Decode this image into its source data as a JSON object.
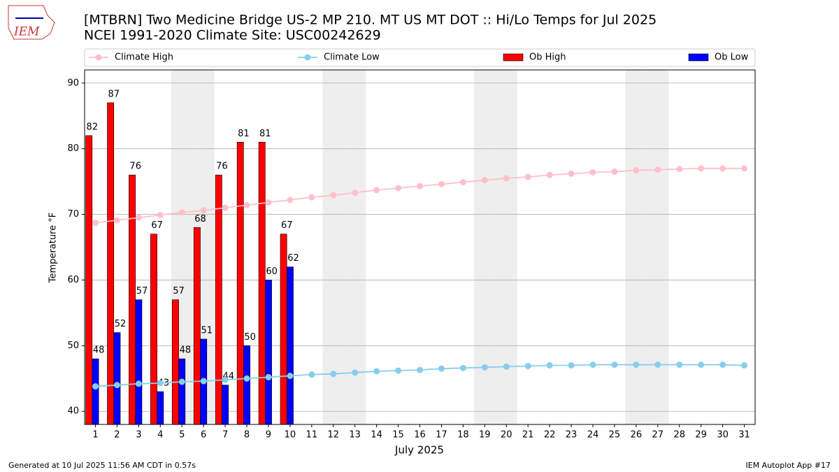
{
  "header": {
    "logo": "IEM"
  },
  "chart_data": {
    "type": "bar_line",
    "title": "[MTBRN] Two Medicine Bridge US-2 MP 210. MT US MT DOT :: Hi/Lo Temps for Jul 2025",
    "subtitle": "NCEI 1991-2020 Climate Site: USC00242629",
    "x_label": "July 2025",
    "y_label": "Temperature °F",
    "x": [
      1,
      2,
      3,
      4,
      5,
      6,
      7,
      8,
      9,
      10,
      11,
      12,
      13,
      14,
      15,
      16,
      17,
      18,
      19,
      20,
      21,
      22,
      23,
      24,
      25,
      26,
      27,
      28,
      29,
      30,
      31
    ],
    "xlim": [
      0.5,
      31.5
    ],
    "xticks": [
      1,
      2,
      3,
      4,
      5,
      6,
      7,
      8,
      9,
      10,
      11,
      12,
      13,
      14,
      15,
      16,
      17,
      18,
      19,
      20,
      21,
      22,
      23,
      24,
      25,
      26,
      27,
      28,
      29,
      30,
      31
    ],
    "ylim": [
      38,
      92
    ],
    "yticks": [
      40,
      50,
      60,
      70,
      80,
      90
    ],
    "grid": true,
    "weekend_days": [
      5,
      6,
      12,
      13,
      19,
      20,
      26,
      27
    ],
    "series": [
      {
        "name": "Climate High",
        "type": "line",
        "color": "#ffc0cb",
        "values": [
          68.7,
          69.1,
          69.5,
          69.9,
          70.3,
          70.6,
          71.0,
          71.4,
          71.8,
          72.2,
          72.6,
          72.9,
          73.3,
          73.7,
          74.0,
          74.3,
          74.6,
          74.9,
          75.2,
          75.5,
          75.7,
          76.0,
          76.2,
          76.4,
          76.5,
          76.7,
          76.8,
          76.9,
          77.0,
          77.0,
          77.0
        ]
      },
      {
        "name": "Climate Low",
        "type": "line",
        "color": "#87ceeb",
        "values": [
          43.8,
          44.0,
          44.2,
          44.3,
          44.5,
          44.6,
          44.8,
          45.0,
          45.2,
          45.4,
          45.6,
          45.7,
          45.9,
          46.1,
          46.2,
          46.3,
          46.5,
          46.6,
          46.7,
          46.8,
          46.9,
          47.0,
          47.0,
          47.1,
          47.1,
          47.1,
          47.1,
          47.1,
          47.1,
          47.1,
          47.0
        ]
      },
      {
        "name": "Ob High",
        "type": "bar",
        "color": "#ff0000",
        "values": [
          82,
          87,
          76,
          67,
          57,
          68,
          76,
          81,
          81,
          67,
          null,
          null,
          null,
          null,
          null,
          null,
          null,
          null,
          null,
          null,
          null,
          null,
          null,
          null,
          null,
          null,
          null,
          null,
          null,
          null,
          null
        ]
      },
      {
        "name": "Ob Low",
        "type": "bar",
        "color": "#0000ff",
        "values": [
          48,
          52,
          57,
          43,
          48,
          51,
          44,
          50,
          60,
          62,
          null,
          null,
          null,
          null,
          null,
          null,
          null,
          null,
          null,
          null,
          null,
          null,
          null,
          null,
          null,
          null,
          null,
          null,
          null,
          null,
          null
        ]
      }
    ]
  },
  "footer": {
    "left": "Generated at 10 Jul 2025 11:56 AM CDT in 0.57s",
    "right": "IEM Autoplot App #17"
  }
}
